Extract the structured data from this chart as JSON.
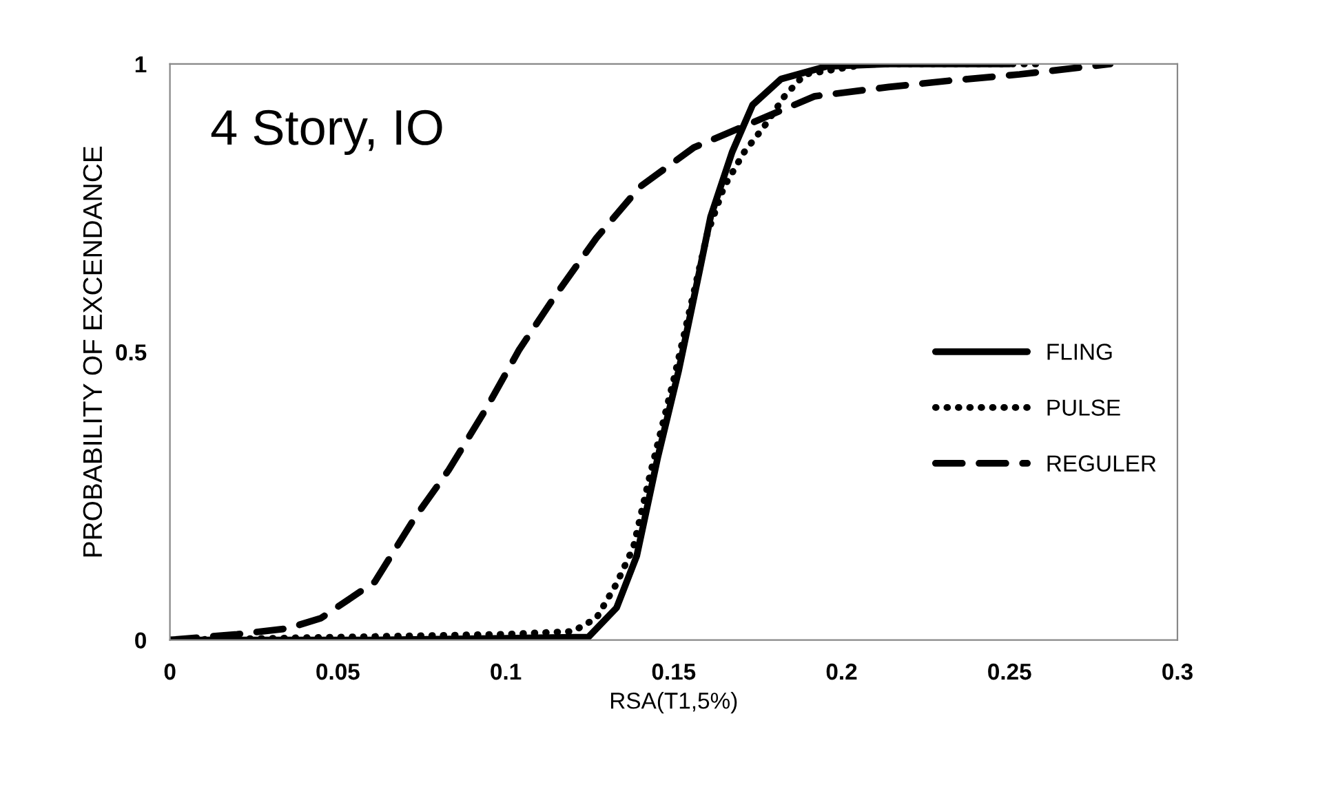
{
  "chart_data": {
    "type": "line",
    "xlabel": "RSA(T1,5%)",
    "ylabel": "PROBABILITY OF EXCENDANCE",
    "annotations": [
      "4 Story, IO"
    ],
    "xlim": [
      0,
      0.3
    ],
    "xticks": [
      0,
      0.05,
      0.1,
      0.15,
      0.2,
      0.25,
      0.3
    ],
    "ylim": [
      0,
      1
    ],
    "yticks": [
      0,
      0.5,
      1
    ],
    "grid": false,
    "legend": "right",
    "marker": "none",
    "series": [
      {
        "name": "FLING",
        "color": "#000000",
        "line_style": "solid",
        "x": [
          0,
          0.06,
          0.1,
          0.1246,
          0.133,
          0.139,
          0.1453,
          0.1515,
          0.1576,
          0.161,
          0.1674,
          0.1735,
          0.182,
          0.1956,
          0.214,
          0.25
        ],
        "values": [
          0,
          0,
          0.003,
          0.005,
          0.056,
          0.146,
          0.318,
          0.468,
          0.638,
          0.735,
          0.847,
          0.929,
          0.974,
          0.996,
          1,
          1
        ]
      },
      {
        "name": "PULSE",
        "color": "#000000",
        "line_style": "dotted",
        "x": [
          0,
          0.05,
          0.1,
          0.12,
          0.127,
          0.133,
          0.138,
          0.143,
          0.15,
          0.16,
          0.165,
          0.171,
          0.177,
          0.183,
          0.189,
          0.208,
          0.26
        ],
        "values": [
          0,
          0.005,
          0.01,
          0.015,
          0.038,
          0.098,
          0.161,
          0.288,
          0.452,
          0.705,
          0.787,
          0.847,
          0.892,
          0.944,
          0.982,
          1,
          1
        ]
      },
      {
        "name": "REGULER",
        "color": "#000000",
        "line_style": "dashed",
        "x": [
          0,
          0.02,
          0.035,
          0.045,
          0.061,
          0.073,
          0.083,
          0.094,
          0.104,
          0.115,
          0.127,
          0.14,
          0.156,
          0.177,
          0.192,
          0.214,
          0.232,
          0.253,
          0.28
        ],
        "values": [
          0,
          0.01,
          0.02,
          0.038,
          0.101,
          0.213,
          0.295,
          0.4,
          0.504,
          0.6,
          0.698,
          0.787,
          0.855,
          0.907,
          0.944,
          0.96,
          0.971,
          0.982,
          1
        ]
      }
    ]
  }
}
